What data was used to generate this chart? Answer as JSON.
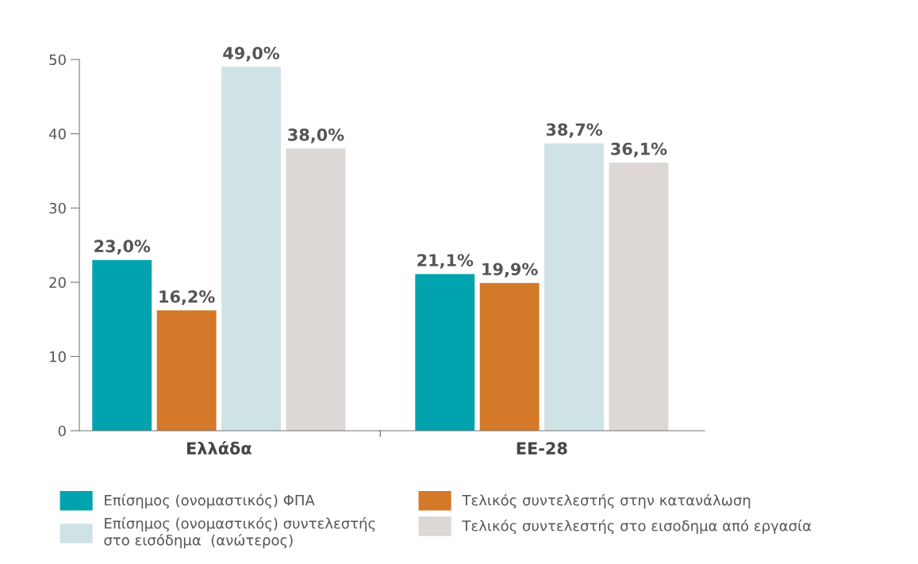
{
  "chart_data": {
    "type": "bar",
    "categories": [
      "Ελλάδα",
      "ΕΕ-28"
    ],
    "series": [
      {
        "name": "Επίσημος (ονομαστικός) ΦΠΑ",
        "color": "#00a3ae",
        "values": [
          23.0,
          21.1
        ],
        "value_labels": [
          "23,0%",
          "21,1%"
        ]
      },
      {
        "name": "Τελικός συντελεστής στην κατανάλωση",
        "color": "#d4782a",
        "values": [
          16.2,
          19.9
        ],
        "value_labels": [
          "16,2%",
          "19,9%"
        ]
      },
      {
        "name": "Επίσημος (ονομαστικός) συντελεστής\nστο εισόδημα  (ανώτερος)",
        "color": "#cfe2e6",
        "values": [
          49.0,
          38.7
        ],
        "value_labels": [
          "49,0%",
          "38,7%"
        ]
      },
      {
        "name": "Τελικός συντελεστής στο εισοδημα από εργασία",
        "color": "#ddd8d5",
        "values": [
          38.0,
          36.1
        ],
        "value_labels": [
          "38,0%",
          "36,1%"
        ]
      }
    ],
    "ylim": [
      0,
      50
    ],
    "yticks": [
      0,
      10,
      20,
      30,
      40,
      50
    ],
    "grid": false,
    "legend": "bottom"
  }
}
